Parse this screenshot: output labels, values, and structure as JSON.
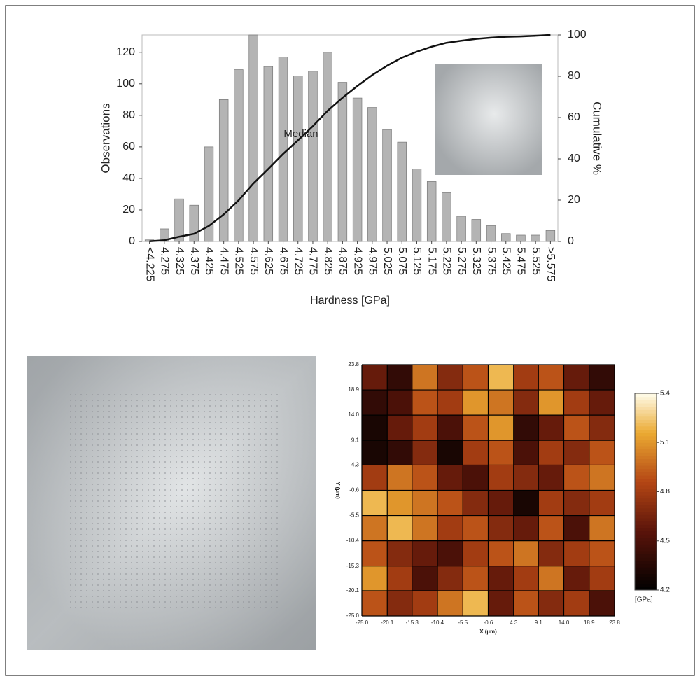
{
  "chart_data": [
    {
      "type": "bar",
      "xlabel": "Hardness [GPa]",
      "ylabel": "Observations",
      "y2label": "Cumulative %",
      "annotation": "Median",
      "categories": [
        "<4.225",
        "4.275",
        "4.325",
        "4.375",
        "4.425",
        "4.475",
        "4.525",
        "4.575",
        "4.625",
        "4.675",
        "4.725",
        "4.775",
        "4.825",
        "4.875",
        "4.925",
        "4.975",
        "5.025",
        "5.075",
        "5.125",
        "5.175",
        "5.225",
        "5.275",
        "5.325",
        "5.375",
        "5.425",
        "5.475",
        "5.525",
        ">5.575"
      ],
      "series": [
        {
          "color": "#b4b4b4",
          "values": [
            1,
            8,
            27,
            23,
            60,
            90,
            109,
            131,
            111,
            117,
            105,
            108,
            120,
            101,
            91,
            85,
            71,
            63,
            46,
            38,
            31,
            16,
            14,
            10,
            5,
            4,
            4,
            7
          ]
        },
        {
          "type": "line",
          "axis": "y2",
          "color": "#111111",
          "values": [
            0.1,
            0.6,
            2.3,
            3.7,
            7.5,
            13.1,
            19.9,
            28.1,
            35.1,
            42.4,
            49,
            55.8,
            63.3,
            69.6,
            75.3,
            80.6,
            85.1,
            89,
            91.9,
            94.3,
            96.2,
            97.2,
            98.1,
            98.7,
            99.1,
            99.3,
            99.6,
            100
          ]
        }
      ],
      "ylim": [
        0,
        131
      ],
      "yticks": [
        0,
        20,
        40,
        60,
        80,
        100,
        120
      ],
      "y2lim": [
        0,
        100
      ],
      "y2ticks": [
        0,
        20,
        40,
        60,
        80,
        100
      ]
    },
    {
      "type": "heatmap",
      "xlabel": "X (µm)",
      "ylabel": "Y (µm)",
      "colorbar_label": "[GPa]",
      "xlim": [
        -25,
        23.8
      ],
      "ylim": [
        -25,
        23.8
      ],
      "xticks": [
        {
          "value": -25,
          "label": "-25.0"
        },
        -20.1,
        -15.3,
        -10.4,
        -5.5,
        -0.6,
        4.3,
        9.1,
        {
          "value": 14,
          "label": "14.0"
        },
        18.9,
        23.8
      ],
      "yticks": [
        23.8,
        18.9,
        {
          "value": 14,
          "label": "14.0"
        },
        9.1,
        4.3,
        -0.6,
        -5.5,
        -10.4,
        -15.3,
        -20.1,
        {
          "value": -25,
          "label": "-25.0"
        }
      ],
      "clim": [
        4.2,
        5.4
      ],
      "cticks": [
        5.4,
        5.1,
        4.8,
        4.5,
        4.2
      ],
      "z": [
        [
          4.6,
          4.4,
          5.0,
          4.7,
          4.9,
          5.2,
          4.8,
          4.9,
          4.6,
          4.4
        ],
        [
          4.4,
          4.5,
          4.9,
          4.8,
          5.1,
          5.0,
          4.7,
          5.1,
          4.8,
          4.6
        ],
        [
          4.3,
          4.6,
          4.8,
          4.5,
          4.9,
          5.1,
          4.4,
          4.6,
          4.9,
          4.7
        ],
        [
          4.3,
          4.4,
          4.7,
          4.3,
          4.8,
          4.9,
          4.5,
          4.8,
          4.7,
          4.9
        ],
        [
          4.8,
          5.0,
          4.9,
          4.6,
          4.5,
          4.8,
          4.7,
          4.6,
          4.9,
          5.0
        ],
        [
          5.2,
          5.1,
          5.0,
          4.9,
          4.7,
          4.6,
          4.3,
          4.8,
          4.7,
          4.8
        ],
        [
          5.0,
          5.2,
          5.0,
          4.8,
          4.9,
          4.7,
          4.6,
          4.9,
          4.5,
          5.0
        ],
        [
          4.9,
          4.7,
          4.6,
          4.5,
          4.8,
          4.9,
          5.0,
          4.7,
          4.8,
          4.9
        ],
        [
          5.1,
          4.8,
          4.5,
          4.7,
          4.9,
          4.6,
          4.8,
          5.0,
          4.6,
          4.8
        ],
        [
          4.9,
          4.7,
          4.8,
          5.0,
          5.2,
          4.6,
          4.9,
          4.7,
          4.8,
          4.5
        ]
      ]
    }
  ]
}
